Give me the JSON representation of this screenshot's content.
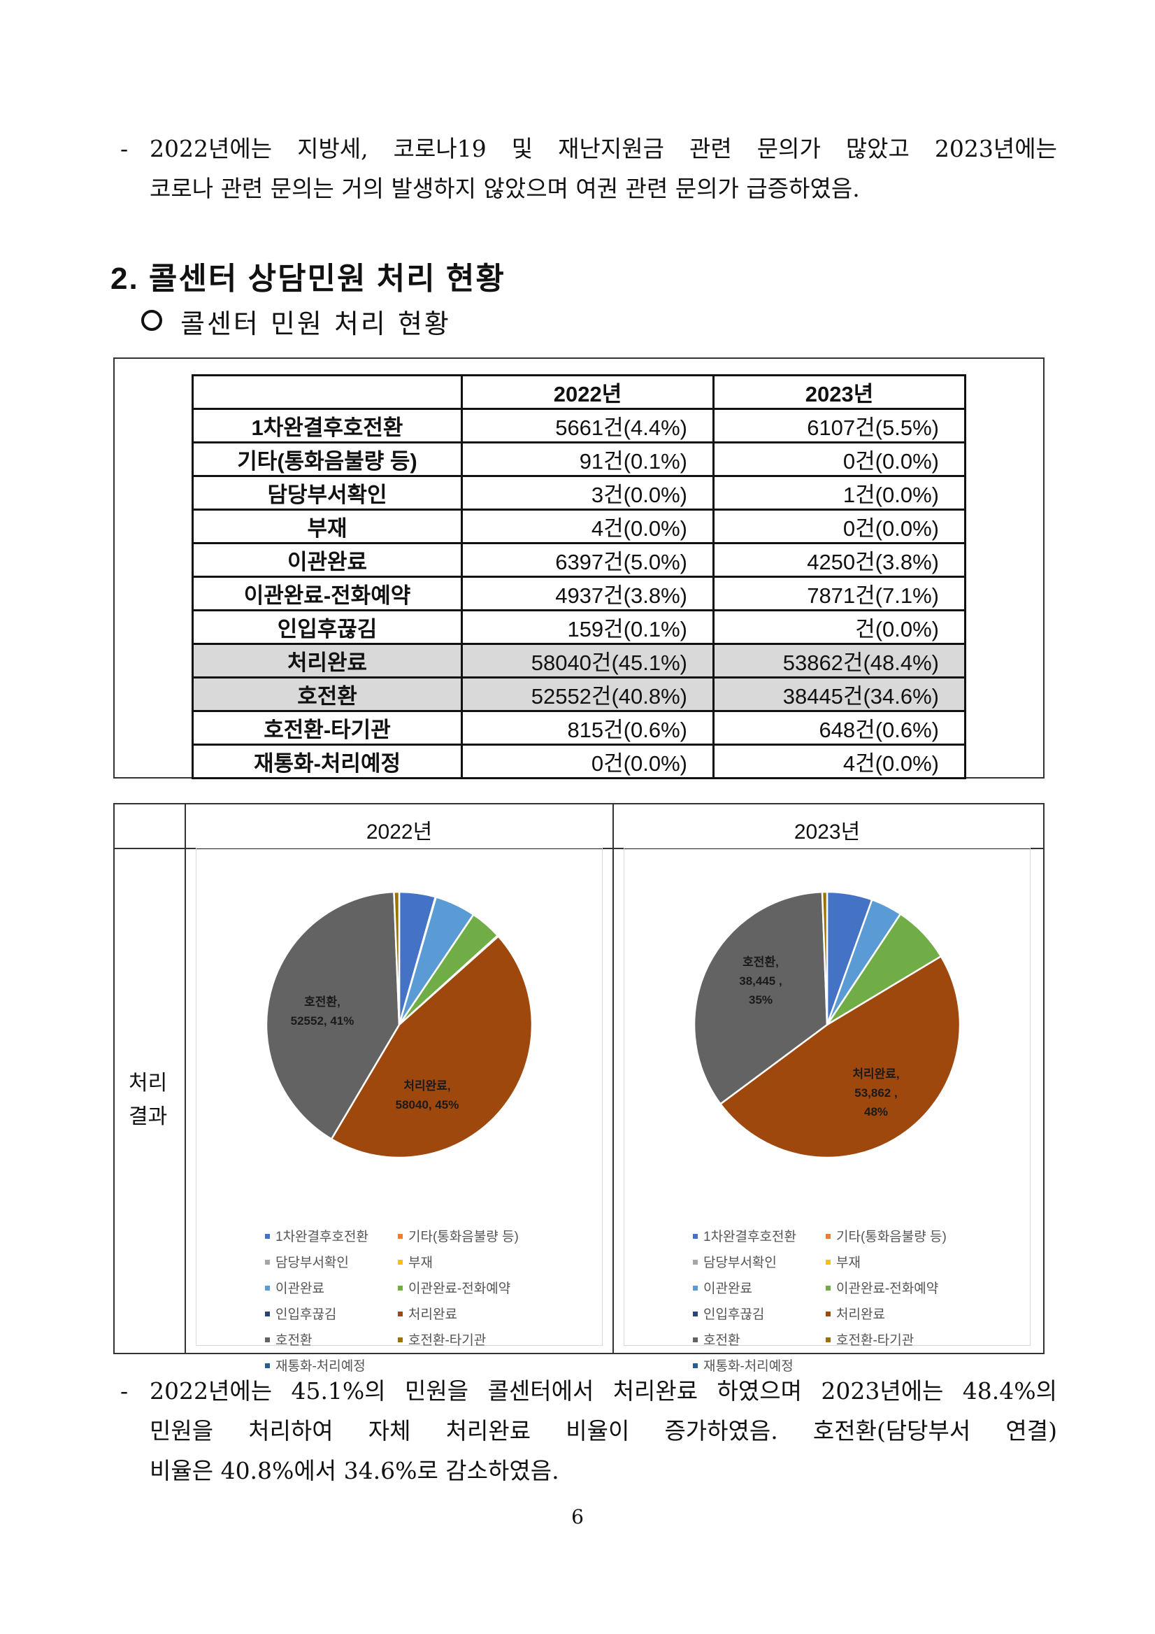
{
  "intro": {
    "dash": "-",
    "line1": "2022년에는 지방세, 코로나19 및 재난지원금 관련 문의가 많았고 2023년에는",
    "line2": "코로나 관련 문의는 거의 발생하지 않았으며 여권 관련 문의가 급증하였음."
  },
  "section_title": "2. 콜센터 상담민원 처리 현황",
  "subsection_title": "콜센터 민원 처리 현황",
  "table": {
    "headers": [
      "",
      "2022년",
      "2023년"
    ],
    "rows": [
      {
        "label": "1차완결후호전환",
        "y2022": "5661건(4.4%)",
        "y2023": "6107건(5.5%)",
        "highlight": false
      },
      {
        "label": "기타(통화음불량 등)",
        "y2022": "91건(0.1%)",
        "y2023": "0건(0.0%)",
        "highlight": false
      },
      {
        "label": "담당부서확인",
        "y2022": "3건(0.0%)",
        "y2023": "1건(0.0%)",
        "highlight": false
      },
      {
        "label": "부재",
        "y2022": "4건(0.0%)",
        "y2023": "0건(0.0%)",
        "highlight": false
      },
      {
        "label": "이관완료",
        "y2022": "6397건(5.0%)",
        "y2023": "4250건(3.8%)",
        "highlight": false
      },
      {
        "label": "이관완료-전화예약",
        "y2022": "4937건(3.8%)",
        "y2023": "7871건(7.1%)",
        "highlight": false
      },
      {
        "label": "인입후끊김",
        "y2022": "159건(0.1%)",
        "y2023": "건(0.0%)",
        "highlight": false
      },
      {
        "label": "처리완료",
        "y2022": "58040건(45.1%)",
        "y2023": "53862건(48.4%)",
        "highlight": true
      },
      {
        "label": "호전환",
        "y2022": "52552건(40.8%)",
        "y2023": "38445건(34.6%)",
        "highlight": true
      },
      {
        "label": "호전환-타기관",
        "y2022": "815건(0.6%)",
        "y2023": "648건(0.6%)",
        "highlight": false
      },
      {
        "label": "재통화-처리예정",
        "y2022": "0건(0.0%)",
        "y2023": "4건(0.0%)",
        "highlight": false
      }
    ]
  },
  "pie_grid": {
    "year_2022": "2022년",
    "year_2023": "2023년",
    "row_label_line1": "처리",
    "row_label_line2": "결과"
  },
  "chart_data": [
    {
      "type": "pie",
      "title": "",
      "categories": [
        "1차완결후호전환",
        "기타(통화음불량 등)",
        "담당부서확인",
        "부재",
        "이관완료",
        "이관완료-전화예약",
        "인입후끊김",
        "처리완료",
        "호전환",
        "호전환-타기관",
        "재통화-처리예정"
      ],
      "values": [
        5661,
        91,
        3,
        4,
        6397,
        4937,
        159,
        58040,
        52552,
        815,
        0
      ],
      "colors": [
        "#4472c4",
        "#ed7d31",
        "#a5a5a5",
        "#ffc000",
        "#5b9bd5",
        "#70ad47",
        "#264478",
        "#9e480e",
        "#636363",
        "#997300",
        "#255e91"
      ],
      "data_labels": [
        {
          "category": "처리완료",
          "line1": "처리완료,",
          "line2": "58040, 45%"
        },
        {
          "category": "호전환",
          "line1": "호전환,",
          "line2": "52552, 41%"
        }
      ],
      "legend_position": "bottom"
    },
    {
      "type": "pie",
      "title": "",
      "categories": [
        "1차완결후호전환",
        "기타(통화음불량 등)",
        "담당부서확인",
        "부재",
        "이관완료",
        "이관완료-전화예약",
        "인입후끊김",
        "처리완료",
        "호전환",
        "호전환-타기관",
        "재통화-처리예정"
      ],
      "values": [
        6107,
        0,
        1,
        0,
        4250,
        7871,
        0,
        53862,
        38445,
        648,
        4
      ],
      "colors": [
        "#4472c4",
        "#ed7d31",
        "#a5a5a5",
        "#ffc000",
        "#5b9bd5",
        "#70ad47",
        "#264478",
        "#9e480e",
        "#636363",
        "#997300",
        "#255e91"
      ],
      "data_labels": [
        {
          "category": "처리완료",
          "line1": "처리완료,",
          "line2": "53,862 ,",
          "line3": "48%"
        },
        {
          "category": "호전환",
          "line1": "호전환,",
          "line2": "38,445 ,",
          "line3": "35%"
        }
      ],
      "legend_position": "bottom"
    }
  ],
  "conclusion": {
    "dash": "-",
    "line1": "2022년에는 45.1%의 민원을 콜센터에서 처리완료 하였으며 2023년에는 48.4%의",
    "line2": "민원을 처리하여 자체 처리완료 비율이 증가하였음. 호전환(담당부서 연결)",
    "line3": "비율은 40.8%에서 34.6%로 감소하였음."
  },
  "page_number": "6"
}
